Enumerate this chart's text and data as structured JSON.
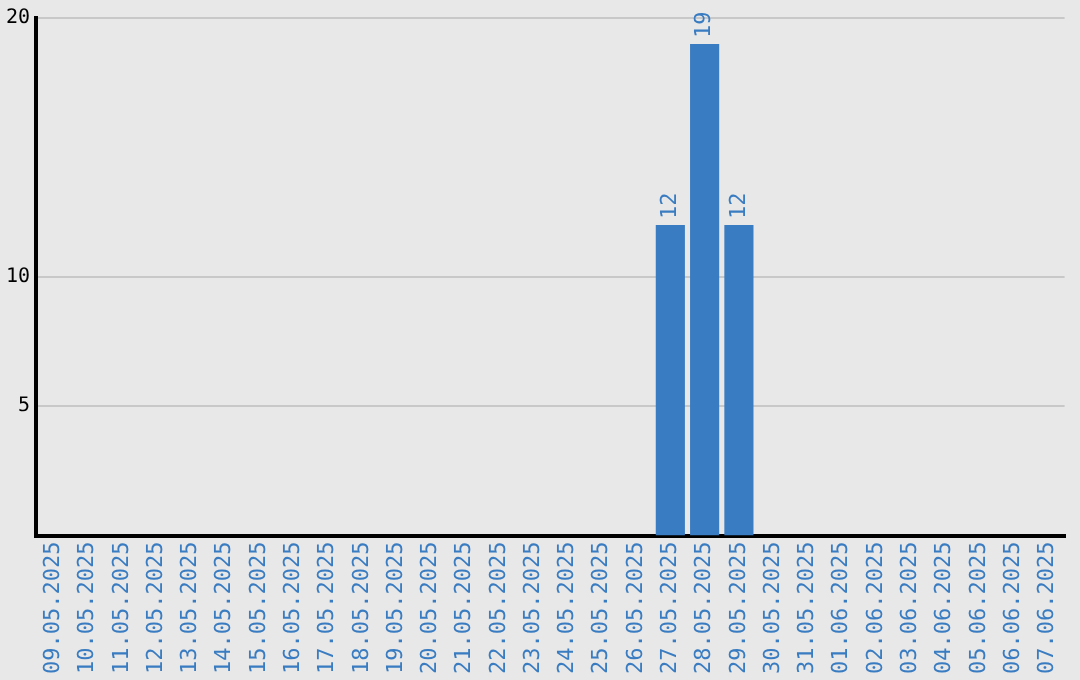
{
  "chart_data": {
    "type": "bar",
    "categories": [
      "09.05.2025",
      "10.05.2025",
      "11.05.2025",
      "12.05.2025",
      "13.05.2025",
      "14.05.2025",
      "15.05.2025",
      "16.05.2025",
      "17.05.2025",
      "18.05.2025",
      "19.05.2025",
      "20.05.2025",
      "21.05.2025",
      "22.05.2025",
      "23.05.2025",
      "24.05.2025",
      "25.05.2025",
      "26.05.2025",
      "27.05.2025",
      "28.05.2025",
      "29.05.2025",
      "30.05.2025",
      "31.05.2025",
      "01.06.2025",
      "02.06.2025",
      "03.06.2025",
      "04.06.2025",
      "05.06.2025",
      "06.06.2025",
      "07.06.2025"
    ],
    "values": [
      null,
      null,
      null,
      null,
      null,
      null,
      null,
      null,
      null,
      null,
      null,
      null,
      null,
      null,
      null,
      null,
      null,
      null,
      12,
      19,
      12,
      null,
      null,
      null,
      null,
      null,
      null,
      null,
      null,
      null
    ],
    "color": "#3a7cc1",
    "ylim": [
      0,
      20
    ],
    "yticks": [
      5,
      10,
      20
    ],
    "grid": "y",
    "legend": false,
    "data_labels": true
  }
}
